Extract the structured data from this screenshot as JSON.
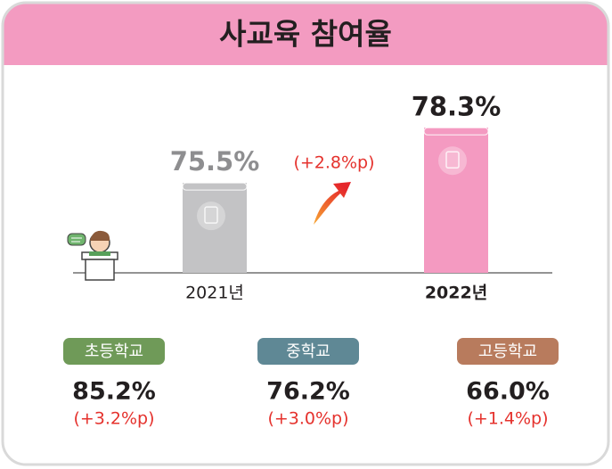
{
  "chart_data": {
    "type": "bar",
    "title": "사교육 참여율",
    "categories": [
      "2021년",
      "2022년"
    ],
    "values": [
      75.5,
      78.3
    ],
    "value_labels": [
      "75.5%",
      "78.3%"
    ],
    "colors": [
      "#c3c3c5",
      "#f49ac1"
    ],
    "label_colors": [
      "#8e8e90",
      "#231f20"
    ],
    "ylim": [
      70.94,
      78.9
    ],
    "annotation": "(+2.8%p)"
  },
  "school_levels": [
    {
      "name": "초등학교",
      "color": "#6f9a58",
      "value": "85.2%",
      "change": "(+3.2%p)"
    },
    {
      "name": "중학교",
      "color": "#5f8895",
      "value": "76.2%",
      "change": "(+3.0%p)"
    },
    {
      "name": "고등학교",
      "color": "#b87b5d",
      "value": "66.0%",
      "change": "(+1.4%p)"
    }
  ]
}
